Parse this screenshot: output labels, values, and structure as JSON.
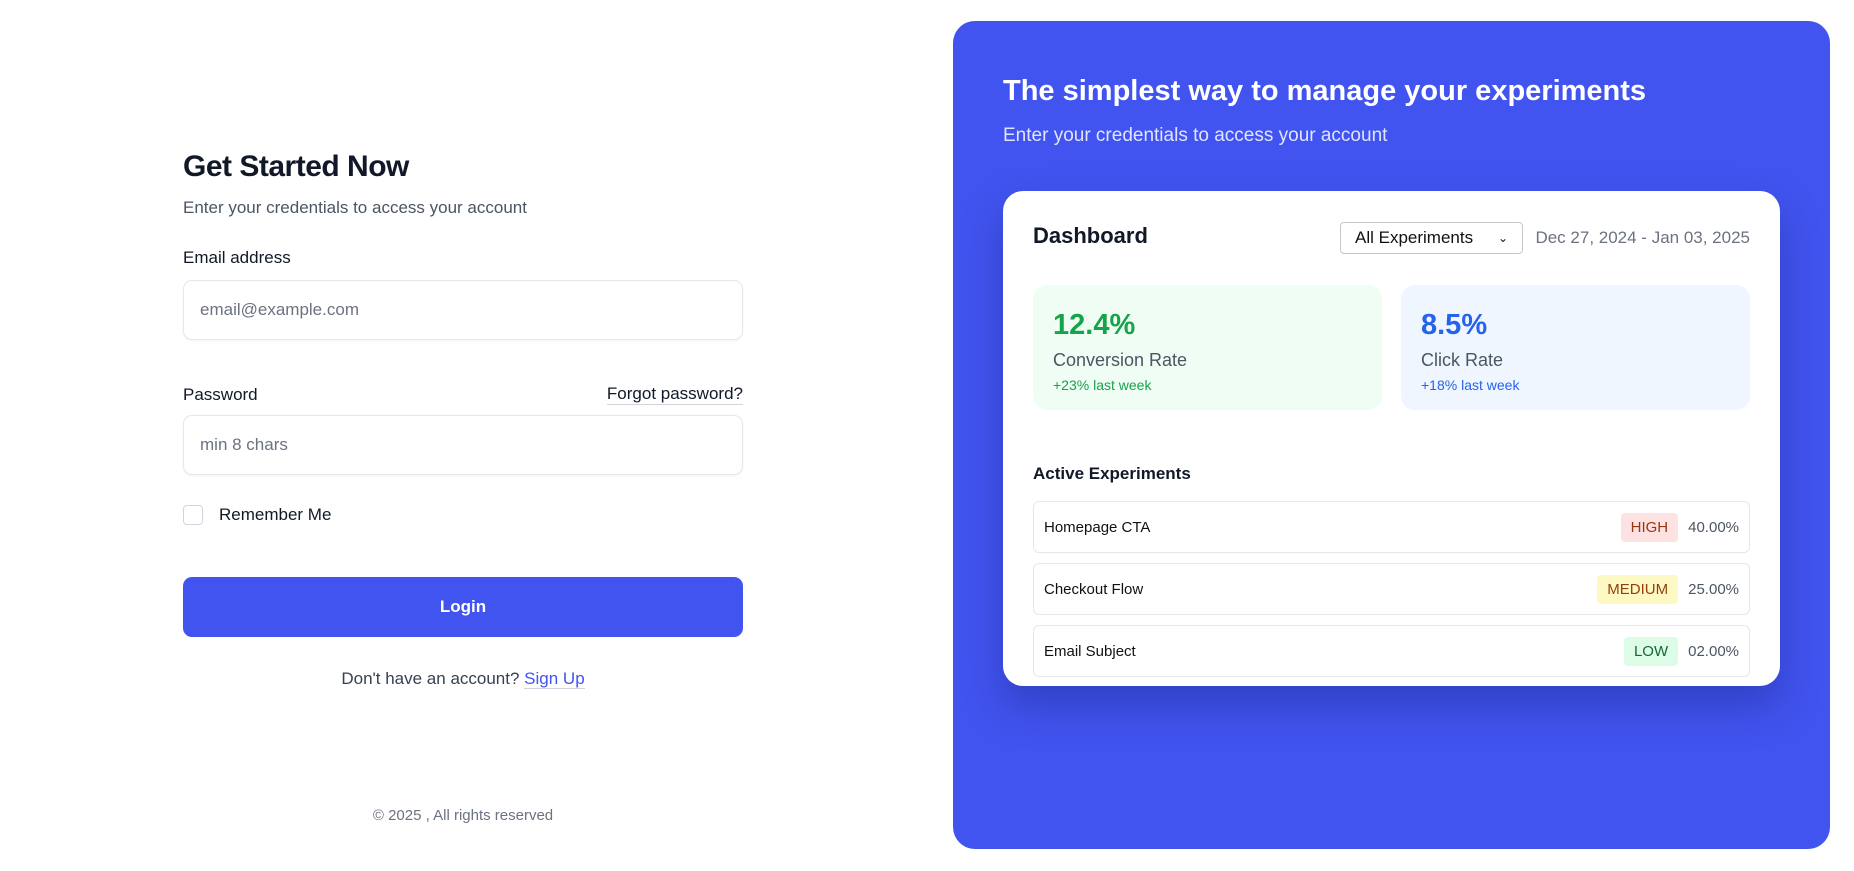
{
  "login": {
    "title": "Get Started Now",
    "subtitle": "Enter your credentials to access your account",
    "email_label": "Email address",
    "email_placeholder": "email@example.com",
    "password_label": "Password",
    "forgot_label": "Forgot password?",
    "password_placeholder": "min 8 chars",
    "remember_label": "Remember Me",
    "remember_checked": false,
    "login_button": "Login",
    "signup_prompt": "Don't have an account?",
    "signup_link": "Sign Up",
    "footer": "© 2025 , All rights reserved"
  },
  "promo": {
    "title": "The simplest way to manage your experiments",
    "subtitle": "Enter your credentials to access your account",
    "accent_color": "#4154ef"
  },
  "dashboard": {
    "title": "Dashboard",
    "filter_selected": "All Experiments",
    "date_range": "Dec 27, 2024 - Jan 03, 2025",
    "stats": [
      {
        "value": "12.4%",
        "label": "Conversion Rate",
        "change": "+23% last week",
        "color": "#16a34a",
        "bg": "#f0fdf4"
      },
      {
        "value": "8.5%",
        "label": "Click Rate",
        "change": "+18% last week",
        "color": "#2563eb",
        "bg": "#eff6ff"
      }
    ],
    "experiments_title": "Active Experiments",
    "experiments": [
      {
        "name": "Homepage CTA",
        "priority": "HIGH",
        "percent": "40.00%",
        "badge_bg": "#fee2e2",
        "badge_color": "#9a3412"
      },
      {
        "name": "Checkout Flow",
        "priority": "MEDIUM",
        "percent": "25.00%",
        "badge_bg": "#fef9c3",
        "badge_color": "#92400e"
      },
      {
        "name": "Email Subject",
        "priority": "LOW",
        "percent": "02.00%",
        "badge_bg": "#dcfce7",
        "badge_color": "#166534"
      }
    ]
  }
}
